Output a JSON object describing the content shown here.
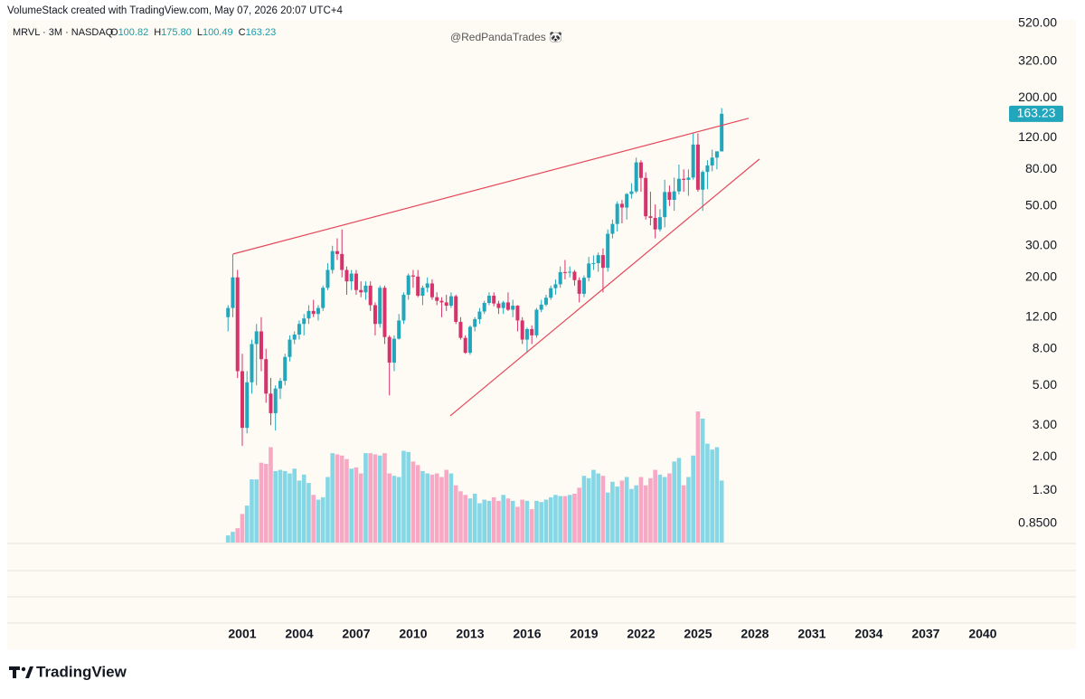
{
  "header": "VolumeStack created with TradingView.com, May 07, 2026 20:07 UTC+4",
  "legend": {
    "symbol": "MRVL · 3M · NASDAQ",
    "ohlc": [
      {
        "key": "O",
        "value": "100.82"
      },
      {
        "key": "H",
        "value": "175.80"
      },
      {
        "key": "L",
        "value": "100.49"
      },
      {
        "key": "C",
        "value": "163.23"
      }
    ]
  },
  "watermark": "@RedPandaTrades 🐼",
  "brand": "TradingView",
  "chart_data": {
    "type": "candlestick",
    "up_color": "#22a6bc",
    "down_color": "#d6336c",
    "volume_up_color": "#86d7e6",
    "volume_down_color": "#f7a8c4",
    "trendline_color": "#e5485b",
    "xlim": [
      1988.62,
      2041.1
    ],
    "ylim": [
      0.665,
      520
    ],
    "log_scale": true,
    "xticks": [
      2001,
      2004,
      2007,
      2010,
      2013,
      2016,
      2019,
      2022,
      2025,
      2028,
      2031,
      2034,
      2037,
      2040
    ],
    "yticks": [
      {
        "value": 520,
        "label": "520.00"
      },
      {
        "value": 320,
        "label": "320.00"
      },
      {
        "value": 200,
        "label": "200.00"
      },
      {
        "value": 120,
        "label": "120.00"
      },
      {
        "value": 80,
        "label": "80.00"
      },
      {
        "value": 50,
        "label": "50.00"
      },
      {
        "value": 30,
        "label": "30.00"
      },
      {
        "value": 20,
        "label": "20.00"
      },
      {
        "value": 12,
        "label": "12.00"
      },
      {
        "value": 8,
        "label": "8.00"
      },
      {
        "value": 5,
        "label": "5.00"
      },
      {
        "value": 3,
        "label": "3.00"
      },
      {
        "value": 2,
        "label": "2.00"
      },
      {
        "value": 1.3,
        "label": "1.30"
      },
      {
        "value": 0.85,
        "label": "0.8500"
      }
    ],
    "x": [
      2000.25,
      2000.5,
      2000.75,
      2001,
      2001.25,
      2001.5,
      2001.75,
      2002,
      2002.25,
      2002.5,
      2002.75,
      2003,
      2003.25,
      2003.5,
      2003.75,
      2004,
      2004.25,
      2004.5,
      2004.75,
      2005,
      2005.25,
      2005.5,
      2005.75,
      2006,
      2006.25,
      2006.5,
      2006.75,
      2007,
      2007.25,
      2007.5,
      2007.75,
      2008,
      2008.25,
      2008.5,
      2008.75,
      2009,
      2009.25,
      2009.5,
      2009.75,
      2010,
      2010.25,
      2010.5,
      2010.75,
      2011,
      2011.25,
      2011.5,
      2011.75,
      2012,
      2012.25,
      2012.5,
      2012.75,
      2013,
      2013.25,
      2013.5,
      2013.75,
      2014,
      2014.25,
      2014.5,
      2014.75,
      2015,
      2015.25,
      2015.5,
      2015.75,
      2016,
      2016.25,
      2016.5,
      2016.75,
      2017,
      2017.25,
      2017.5,
      2017.75,
      2018,
      2018.25,
      2018.5,
      2018.75,
      2019,
      2019.25,
      2019.5,
      2019.75,
      2020,
      2020.25,
      2020.5,
      2020.75,
      2021,
      2021.25,
      2021.5,
      2021.75,
      2022,
      2022.25,
      2022.5,
      2022.75,
      2023,
      2023.25,
      2023.5,
      2023.75,
      2024,
      2024.25,
      2024.5,
      2024.75,
      2025,
      2025.25,
      2025.5,
      2025.75,
      2026,
      2026.25
    ],
    "open": [
      12,
      13.5,
      20,
      6,
      2.9,
      5.2,
      8.5,
      10,
      7,
      4.5,
      3.5,
      4.8,
      5.3,
      7.2,
      9,
      9.6,
      11,
      11.8,
      13,
      12.5,
      13.5,
      17.5,
      22,
      28,
      27,
      22,
      19,
      21,
      17,
      16.5,
      18,
      14,
      11,
      17.5,
      9.3,
      6.7,
      9.1,
      11.5,
      16,
      20.5,
      20.2,
      15.8,
      17.5,
      18.5,
      15.5,
      14.8,
      14.5,
      13.9,
      15.7,
      11.3,
      9.2,
      7.6,
      10.6,
      11.7,
      12.9,
      14.4,
      15.8,
      14.3,
      13.5,
      14.5,
      13.2,
      13.9,
      11.5,
      9,
      10.3,
      9.5,
      13.2,
      14.1,
      15.4,
      17.4,
      18.3,
      21.4,
      21.3,
      21.5,
      19.3,
      16.2,
      19.9,
      23.9,
      24,
      26.6,
      22.6,
      35,
      39.7,
      51.4,
      49,
      58.3,
      60.3,
      87.5,
      71.7,
      43.8,
      42.9,
      37,
      43.3,
      59.8,
      54.1,
      60.3,
      70.9,
      69.9,
      72,
      110,
      61.6,
      77.4,
      84.1,
      93,
      100.82
    ],
    "high": [
      14,
      27,
      22,
      7.5,
      6,
      9,
      11,
      12,
      8,
      5.5,
      5,
      5.5,
      7.5,
      9.5,
      10,
      11.5,
      12.5,
      14,
      15,
      14,
      18,
      24,
      30,
      33,
      37,
      23,
      22,
      22,
      19,
      19,
      19,
      14.5,
      18,
      18,
      9.5,
      9.5,
      12.5,
      16.5,
      21,
      22,
      22,
      18,
      20,
      19.5,
      16.5,
      15.5,
      16,
      16.5,
      16,
      12,
      9.5,
      10.8,
      12,
      13.5,
      14.8,
      16.5,
      16.5,
      14.8,
      14.8,
      16.5,
      15,
      14,
      12,
      10.5,
      10.8,
      13.5,
      15,
      16,
      18,
      19.5,
      23,
      25,
      23,
      22,
      20,
      20.5,
      26,
      26.5,
      27.5,
      29,
      37,
      42,
      53,
      54,
      59,
      67,
      93,
      90,
      77,
      60,
      51,
      48,
      70,
      65,
      72,
      85,
      80,
      80,
      127,
      127,
      79,
      90,
      103,
      100,
      175.8
    ],
    "low": [
      10,
      12,
      5.5,
      2.3,
      2.7,
      4.5,
      5,
      6,
      4,
      3,
      2.8,
      4.2,
      5,
      6.8,
      8.5,
      9,
      9.5,
      11,
      12,
      11.5,
      13,
      17,
      21,
      25,
      20,
      16,
      17,
      16,
      15.5,
      15,
      13,
      9.5,
      10.5,
      8.5,
      4.4,
      6,
      9,
      11,
      15,
      17.5,
      15.5,
      14,
      16.5,
      15,
      14,
      12,
      13,
      13.5,
      11,
      9,
      7.5,
      7.4,
      10,
      11,
      12.5,
      14,
      13.8,
      12.5,
      12.5,
      13,
      12,
      10,
      8.5,
      7.6,
      8.5,
      9.2,
      12.8,
      13.8,
      15,
      16,
      17.5,
      19.5,
      20,
      18,
      14.5,
      15.5,
      19,
      22,
      21.5,
      16.5,
      21.5,
      33,
      36,
      40,
      42,
      55,
      59,
      60,
      42,
      39,
      33,
      36,
      38,
      50,
      47,
      58,
      60,
      57,
      70,
      60,
      47,
      62,
      78,
      80,
      100.49
    ],
    "close": [
      13.5,
      20,
      6,
      2.9,
      5.2,
      8.5,
      10,
      7,
      4.5,
      3.5,
      4.8,
      5.3,
      7.2,
      9,
      9.6,
      11,
      11.8,
      13,
      12.5,
      13.5,
      17.5,
      22,
      28,
      27,
      22,
      19,
      21,
      17,
      16.5,
      18,
      14,
      11,
      17.5,
      9.3,
      6.7,
      9.1,
      11.5,
      16,
      20.5,
      20.2,
      15.8,
      17.5,
      18.5,
      15.5,
      14.8,
      14.5,
      13.9,
      15.7,
      11.3,
      9.2,
      7.6,
      10.6,
      11.7,
      12.9,
      14.4,
      15.8,
      14.3,
      13.5,
      14.5,
      13.2,
      13.9,
      11.5,
      9,
      10.3,
      9.5,
      13.2,
      14.1,
      15.4,
      17.4,
      18.3,
      21.4,
      21.3,
      21.5,
      19.3,
      16.2,
      19.9,
      23.9,
      24,
      26.6,
      22.6,
      35,
      39.7,
      51.4,
      49,
      58.3,
      60.3,
      87.5,
      71.7,
      43.8,
      42.9,
      37,
      43.3,
      59.8,
      54.1,
      60.3,
      70.9,
      69.9,
      72,
      110,
      61.6,
      77.4,
      84.1,
      93,
      100.8,
      163.23
    ],
    "volume": [
      6,
      9,
      12,
      24,
      31,
      53,
      53,
      67,
      66,
      80,
      60,
      61,
      60,
      58,
      62,
      52,
      57,
      50,
      40,
      36,
      38,
      55,
      75,
      74,
      73,
      70,
      62,
      63,
      58,
      75,
      75,
      74,
      73,
      75,
      58,
      56,
      55,
      77,
      76,
      68,
      65,
      60,
      58,
      57,
      58,
      55,
      61,
      58,
      48,
      43,
      40,
      37,
      41,
      33,
      36,
      35,
      38,
      35,
      40,
      37,
      35,
      30,
      36,
      35,
      28,
      35,
      34,
      36,
      38,
      40,
      39,
      39,
      40,
      41,
      46,
      56,
      54,
      61,
      58,
      56,
      42,
      51,
      47,
      52,
      55,
      45,
      48,
      55,
      48,
      54,
      61,
      57,
      55,
      58,
      68,
      71,
      48,
      55,
      73,
      110,
      104,
      83,
      78,
      80,
      52
    ],
    "trendlines": [
      {
        "x": [
          2000.52,
          2027.67
        ],
        "y": [
          27,
          154
        ]
      },
      {
        "x": [
          2011.95,
          2028.24
        ],
        "y": [
          3.38,
          91.3
        ]
      }
    ]
  }
}
